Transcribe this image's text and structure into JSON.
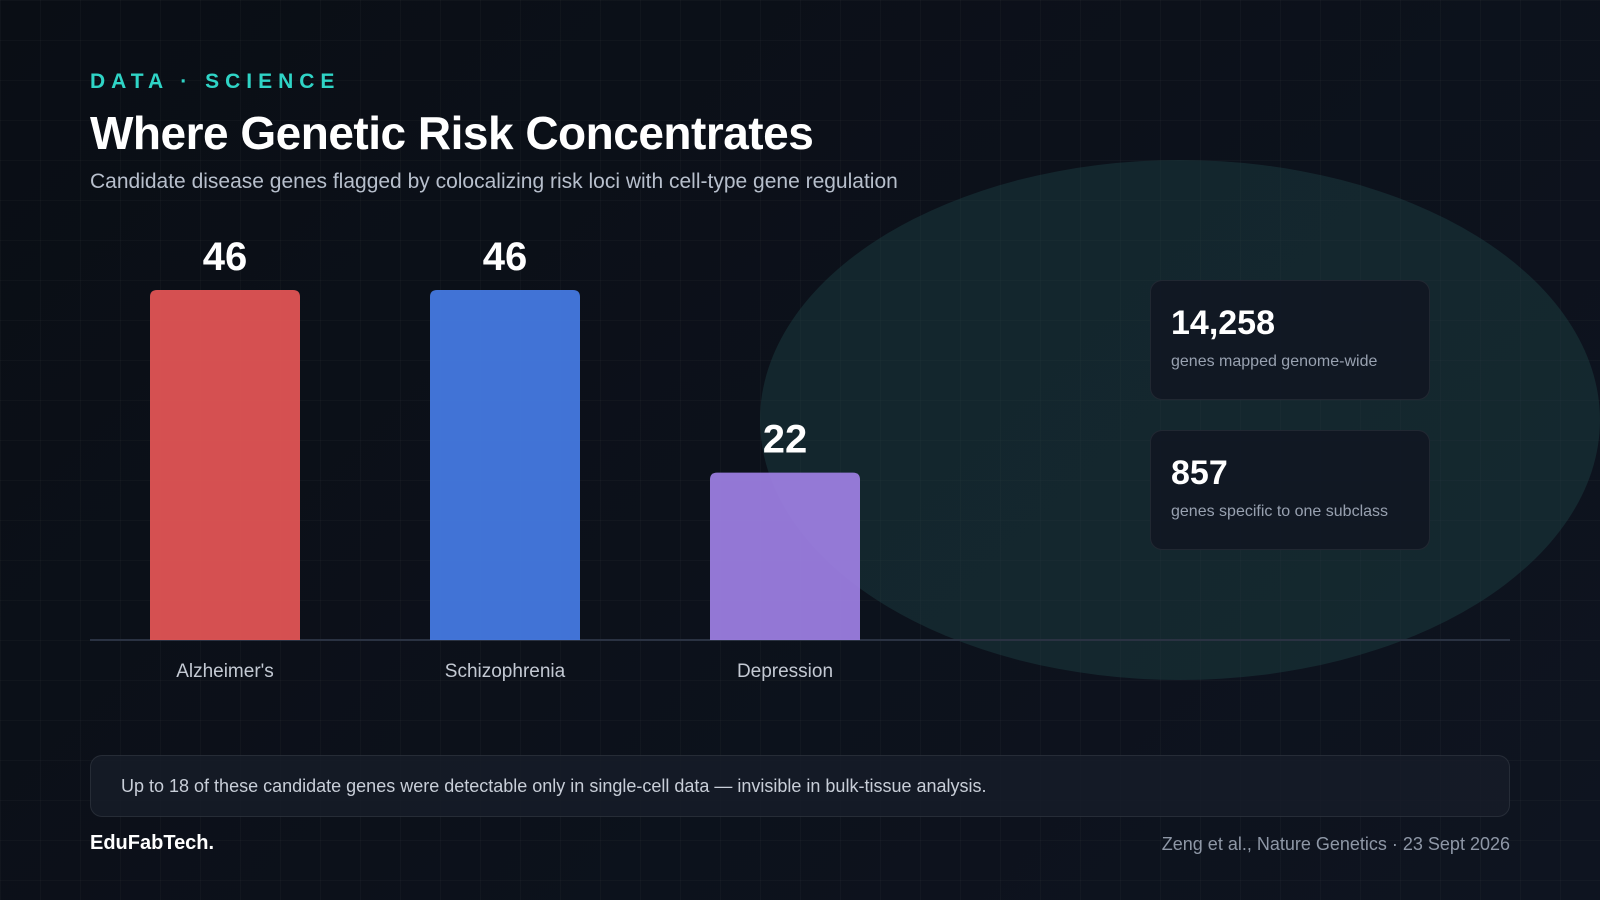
{
  "header": {
    "kicker": "DATA · SCIENCE",
    "title": "Where Genetic Risk Concentrates",
    "subtitle": "Candidate disease genes flagged by colocalizing risk loci with cell-type gene regulation"
  },
  "chart_data": {
    "type": "bar",
    "categories": [
      "Alzheimer's",
      "Schizophrenia",
      "Depression"
    ],
    "values": [
      46,
      46,
      22
    ],
    "colors": [
      "#e05454",
      "#4579e0",
      "#9b7ddf"
    ],
    "ylim": [
      0,
      46
    ],
    "data_labels": true,
    "grid": false
  },
  "stats": [
    {
      "value": "14,258",
      "label": "genes mapped genome-wide"
    },
    {
      "value": "857",
      "label": "genes specific to one subclass"
    }
  ],
  "note": "Up to 18 of these candidate genes were detectable only in single-cell data — invisible in bulk-tissue analysis.",
  "footer": {
    "brand": "EduFabTech.",
    "source": "Zeng et al., Nature Genetics · 23 Sept 2026"
  },
  "colors": {
    "accent": "#2fd4c6",
    "background": "#0b0f17"
  }
}
